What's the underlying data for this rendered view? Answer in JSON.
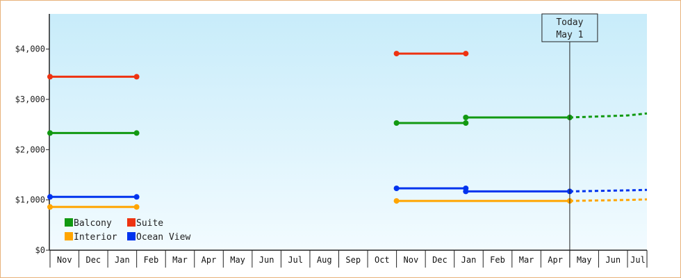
{
  "chart_data": {
    "type": "line",
    "title": "",
    "xlabel": "",
    "ylabel": "",
    "ylim": [
      0,
      4700
    ],
    "yticks": [
      "$0",
      "$1,000",
      "$2,000",
      "$3,000",
      "$4,000"
    ],
    "ytick_values": [
      0,
      1000,
      2000,
      3000,
      4000
    ],
    "months": [
      "Nov",
      "Dec",
      "Jan",
      "Feb",
      "Mar",
      "Apr",
      "May",
      "Jun",
      "Jul",
      "Aug",
      "Sep",
      "Oct",
      "Nov",
      "Dec",
      "Jan",
      "Feb",
      "Mar",
      "Apr",
      "May",
      "Jun",
      "Jul"
    ],
    "today_marker": {
      "line1": "Today",
      "line2": "May 1",
      "month_index": 18.0
    },
    "grid": false,
    "legend_placement": "bottom-left",
    "series": [
      {
        "name": "Balcony",
        "color": "#119911",
        "segments": [
          {
            "points": [
              [
                0.0,
                2330
              ],
              [
                3.0,
                2330
              ]
            ]
          },
          {
            "points": [
              [
                12.0,
                2530
              ],
              [
                14.4,
                2530
              ]
            ]
          },
          {
            "points": [
              [
                14.4,
                2640
              ],
              [
                18.0,
                2640
              ]
            ]
          },
          {
            "dashed": true,
            "points": [
              [
                18.0,
                2640
              ],
              [
                20.0,
                2680
              ],
              [
                21.0,
                2720
              ]
            ]
          }
        ]
      },
      {
        "name": "Suite",
        "color": "#ee3311",
        "segments": [
          {
            "points": [
              [
                0.0,
                3450
              ],
              [
                3.0,
                3450
              ]
            ]
          },
          {
            "points": [
              [
                12.0,
                3910
              ],
              [
                14.4,
                3910
              ]
            ]
          }
        ]
      },
      {
        "name": "Interior",
        "color": "#ffa500",
        "segments": [
          {
            "points": [
              [
                0.0,
                860
              ],
              [
                3.0,
                860
              ]
            ]
          },
          {
            "points": [
              [
                12.0,
                980
              ],
              [
                18.0,
                980
              ]
            ]
          },
          {
            "dashed": true,
            "points": [
              [
                18.0,
                980
              ],
              [
                20.0,
                1000
              ],
              [
                21.0,
                1010
              ]
            ]
          }
        ]
      },
      {
        "name": "Ocean View",
        "color": "#0033ee",
        "segments": [
          {
            "points": [
              [
                0.0,
                1060
              ],
              [
                3.0,
                1060
              ]
            ]
          },
          {
            "points": [
              [
                12.0,
                1230
              ],
              [
                14.4,
                1230
              ]
            ]
          },
          {
            "points": [
              [
                14.4,
                1170
              ],
              [
                18.0,
                1170
              ]
            ]
          },
          {
            "dashed": true,
            "points": [
              [
                18.0,
                1170
              ],
              [
                20.0,
                1190
              ],
              [
                21.0,
                1200
              ]
            ]
          }
        ]
      }
    ],
    "legend_order": [
      "Balcony",
      "Suite",
      "Interior",
      "Ocean View"
    ]
  }
}
